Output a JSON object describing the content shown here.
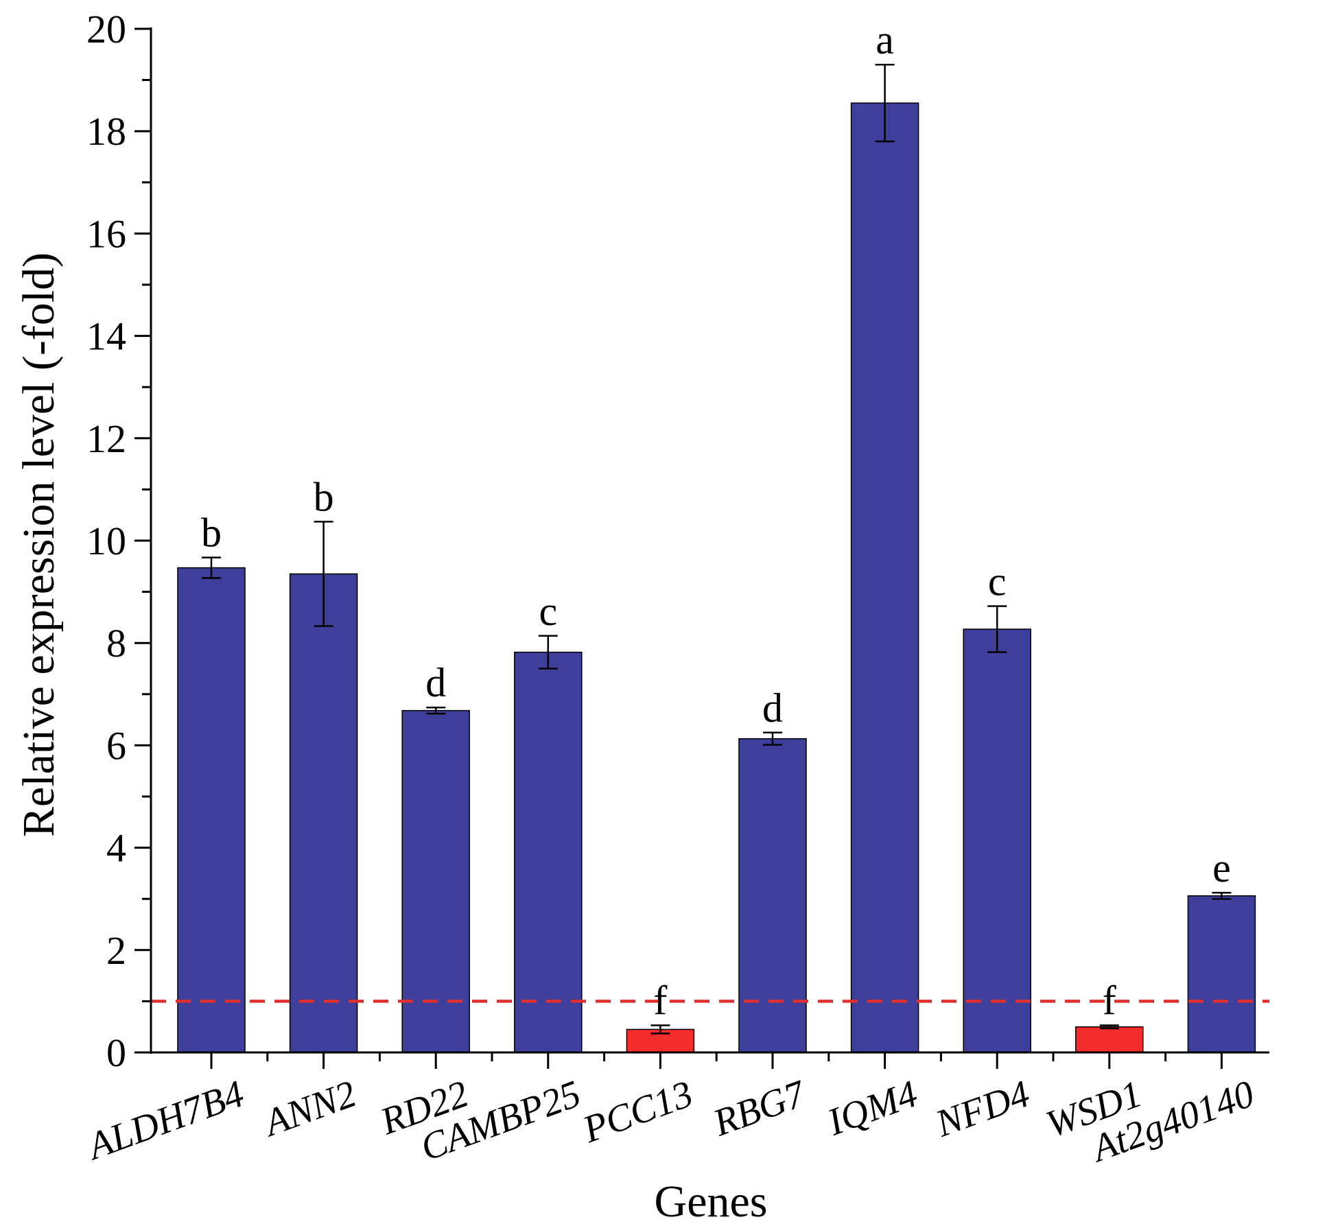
{
  "chart_data": {
    "type": "bar",
    "xlabel": "Genes",
    "ylabel": "Relative expression level (-fold)",
    "ylim": [
      0,
      20
    ],
    "yticks": [
      0,
      2,
      4,
      6,
      8,
      10,
      12,
      14,
      16,
      18,
      20
    ],
    "categories": [
      "ALDH7B4",
      "ANN2",
      "RD22",
      "CAMBP25",
      "PCC13",
      "RBG7",
      "IQM4",
      "NFD4",
      "WSD1",
      "At2g40140"
    ],
    "values": [
      9.47,
      9.35,
      6.68,
      7.82,
      0.45,
      6.13,
      18.55,
      8.27,
      0.5,
      3.06
    ],
    "errors": [
      0.2,
      1.02,
      0.06,
      0.32,
      0.08,
      0.12,
      0.75,
      0.45,
      0.03,
      0.06
    ],
    "significance": [
      "b",
      "b",
      "d",
      "c",
      "f",
      "d",
      "a",
      "c",
      "f",
      "e"
    ],
    "bar_colors": [
      "#3d3f9a",
      "#3d3f9a",
      "#3d3f9a",
      "#3d3f9a",
      "#f42c2c",
      "#3d3f9a",
      "#3d3f9a",
      "#3d3f9a",
      "#f42c2c",
      "#3d3f9a"
    ],
    "reference_line": {
      "y": 1,
      "color": "#e03030",
      "style": "dashed"
    },
    "grid": false,
    "legend": "none"
  }
}
